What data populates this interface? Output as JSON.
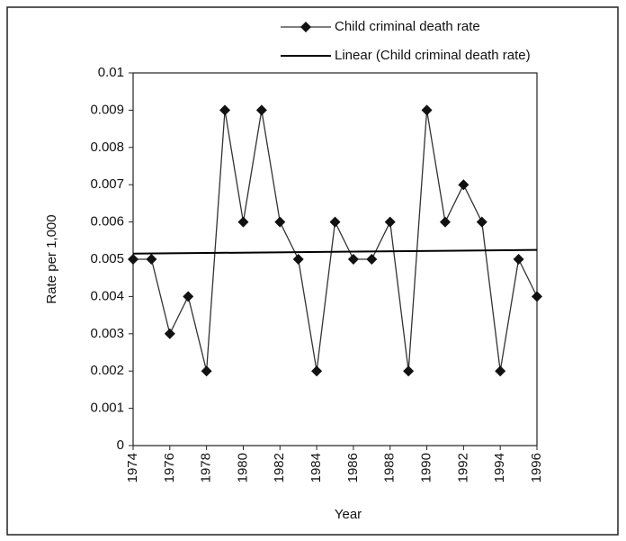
{
  "chart_data": {
    "type": "line",
    "x": [
      1974,
      1975,
      1976,
      1977,
      1978,
      1979,
      1980,
      1981,
      1982,
      1983,
      1984,
      1985,
      1986,
      1987,
      1988,
      1989,
      1990,
      1991,
      1992,
      1993,
      1994,
      1995,
      1996
    ],
    "series": [
      {
        "name": "Child criminal death rate",
        "color": "#333333",
        "values": [
          0.005,
          0.005,
          0.003,
          0.004,
          0.002,
          0.009,
          0.006,
          0.009,
          0.006,
          0.005,
          0.002,
          0.006,
          0.005,
          0.005,
          0.006,
          0.002,
          0.009,
          0.006,
          0.007,
          0.006,
          0.002,
          0.005,
          0.004
        ]
      },
      {
        "name": "Linear (Child criminal death rate)",
        "color": "#000000",
        "x": [
          1974,
          1996
        ],
        "values": [
          0.00515,
          0.00525
        ]
      }
    ],
    "xlabel": "Year",
    "ylabel": "Rate per 1,000",
    "xlim": [
      1974,
      1996
    ],
    "xticks": [
      1974,
      1976,
      1978,
      1980,
      1982,
      1984,
      1986,
      1988,
      1990,
      1992,
      1994,
      1996
    ],
    "ylim": [
      0,
      0.01
    ],
    "yticks": [
      0,
      0.001,
      0.002,
      0.003,
      0.004,
      0.005,
      0.006,
      0.007,
      0.008,
      0.009,
      0.01
    ],
    "legend": "top-right",
    "grid": false
  }
}
